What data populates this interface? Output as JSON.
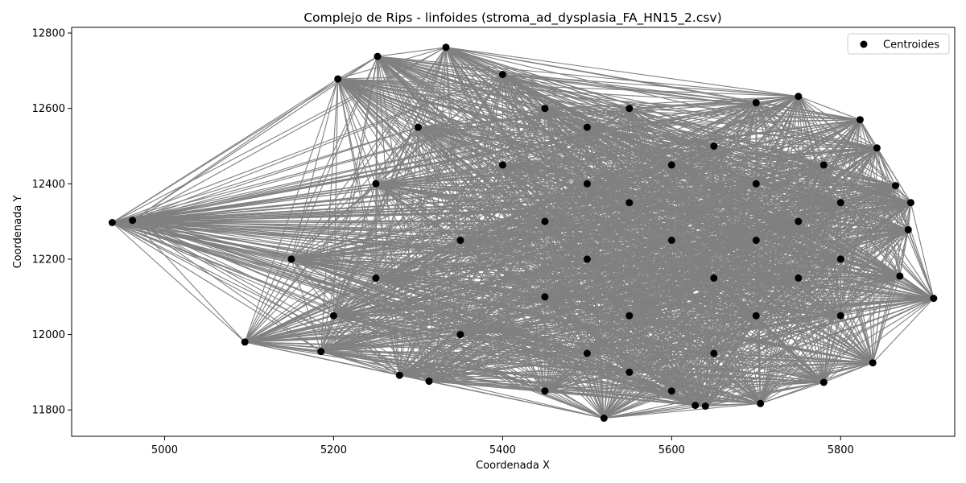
{
  "chart_data": {
    "type": "scatter",
    "title": "Complejo de Rips - linfoides (stroma_ad_dysplasia_FA_HN15_2.csv)",
    "xlabel": "Coordenada X",
    "ylabel": "Coordenada Y",
    "xlim": [
      4890,
      5935
    ],
    "ylim": [
      11730,
      12815
    ],
    "xticks": [
      5000,
      5200,
      5400,
      5600,
      5800
    ],
    "yticks": [
      11800,
      12000,
      12200,
      12400,
      12600,
      12800
    ],
    "legend": {
      "position": "top-right",
      "entries": [
        "Centroides"
      ]
    },
    "colors": {
      "points": "#000000",
      "edges": "#808080"
    },
    "grid": false,
    "series": [
      {
        "name": "Centroides",
        "points": [
          [
            4938,
            12297
          ],
          [
            4962,
            12303
          ],
          [
            5095,
            11980
          ],
          [
            5185,
            11955
          ],
          [
            5205,
            12678
          ],
          [
            5252,
            12738
          ],
          [
            5278,
            11892
          ],
          [
            5313,
            11876
          ],
          [
            5333,
            12762
          ],
          [
            5400,
            12690
          ],
          [
            5450,
            12600
          ],
          [
            5500,
            12550
          ],
          [
            5520,
            11778
          ],
          [
            5600,
            11850
          ],
          [
            5628,
            11812
          ],
          [
            5640,
            11810
          ],
          [
            5700,
            12615
          ],
          [
            5705,
            11817
          ],
          [
            5750,
            12632
          ],
          [
            5780,
            11873
          ],
          [
            5823,
            12570
          ],
          [
            5838,
            11925
          ],
          [
            5843,
            12495
          ],
          [
            5865,
            12395
          ],
          [
            5870,
            12155
          ],
          [
            5880,
            12278
          ],
          [
            5883,
            12350
          ],
          [
            5910,
            12096
          ],
          [
            5250,
            12400
          ],
          [
            5250,
            12150
          ],
          [
            5350,
            12250
          ],
          [
            5350,
            12000
          ],
          [
            5400,
            12450
          ],
          [
            5450,
            12300
          ],
          [
            5450,
            12100
          ],
          [
            5500,
            12400
          ],
          [
            5500,
            12200
          ],
          [
            5500,
            11950
          ],
          [
            5550,
            12350
          ],
          [
            5550,
            12050
          ],
          [
            5600,
            12450
          ],
          [
            5600,
            12250
          ],
          [
            5650,
            12150
          ],
          [
            5650,
            11950
          ],
          [
            5700,
            12400
          ],
          [
            5700,
            12250
          ],
          [
            5700,
            12050
          ],
          [
            5750,
            12300
          ],
          [
            5750,
            12150
          ],
          [
            5800,
            12200
          ],
          [
            5800,
            12350
          ],
          [
            5800,
            12050
          ],
          [
            5300,
            12550
          ],
          [
            5450,
            11850
          ],
          [
            5550,
            12600
          ],
          [
            5150,
            12200
          ],
          [
            5200,
            12050
          ],
          [
            5550,
            11900
          ],
          [
            5780,
            12450
          ],
          [
            5650,
            12500
          ]
        ]
      }
    ],
    "edges": "rips"
  }
}
